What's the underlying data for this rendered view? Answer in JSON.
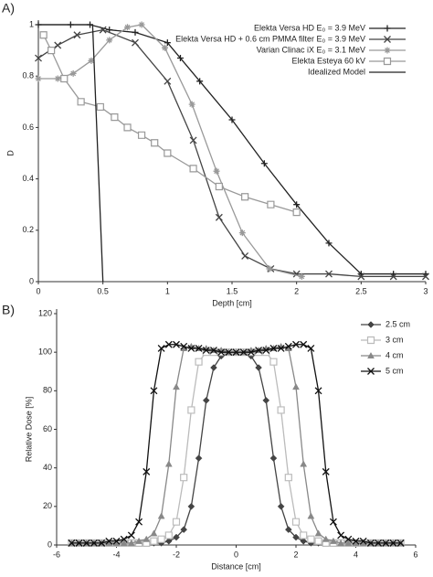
{
  "chart_data": [
    {
      "type": "line",
      "panel_label": "A)",
      "xlabel": "Depth [cm]",
      "ylabel": "D",
      "xlim": [
        0,
        3
      ],
      "ylim": [
        0,
        1
      ],
      "xticks": [
        0,
        0.5,
        1,
        1.5,
        2,
        2.5,
        3
      ],
      "yticks": [
        0,
        0.2,
        0.4,
        0.6,
        0.8,
        1
      ],
      "legend": "upper right",
      "series": [
        {
          "name": "Elekta Versa HD E₀ = 3.9 MeV",
          "color": "#222222",
          "marker": "plus",
          "x": [
            0,
            0.25,
            0.4,
            0.55,
            0.75,
            1.0,
            1.1,
            1.25,
            1.5,
            1.75,
            2.0,
            2.25,
            2.5,
            2.75,
            3.0
          ],
          "values": [
            1,
            1,
            1,
            0.98,
            0.97,
            0.93,
            0.87,
            0.78,
            0.63,
            0.46,
            0.3,
            0.15,
            0.03,
            0.03,
            0.03
          ]
        },
        {
          "name": "Elekta Versa HD + 0.6 cm PMMA filter E₀ = 3.9 MeV",
          "color": "#444444",
          "marker": "cross",
          "x": [
            0,
            0.15,
            0.3,
            0.5,
            0.75,
            1.0,
            1.2,
            1.4,
            1.6,
            1.8,
            2.0,
            2.25,
            2.5,
            2.75,
            3.0
          ],
          "values": [
            0.87,
            0.92,
            0.96,
            0.98,
            0.93,
            0.78,
            0.55,
            0.25,
            0.1,
            0.05,
            0.03,
            0.03,
            0.02,
            0.02,
            0.02
          ]
        },
        {
          "name": "Varian Clinac iX E₀ = 3.1 MeV",
          "color": "#999999",
          "marker": "asterisk",
          "x": [
            0,
            0.15,
            0.27,
            0.41,
            0.55,
            0.69,
            0.8,
            0.98,
            1.19,
            1.38,
            1.58,
            1.79,
            2.04
          ],
          "values": [
            0.79,
            0.79,
            0.81,
            0.86,
            0.94,
            0.99,
            1.0,
            0.91,
            0.69,
            0.43,
            0.19,
            0.05,
            0.02
          ]
        },
        {
          "name": "Elekta Esteya 60 kV",
          "color": "#999999",
          "marker": "square",
          "x": [
            0.04,
            0.1,
            0.2,
            0.33,
            0.48,
            0.59,
            0.69,
            0.8,
            0.9,
            1.0,
            1.2,
            1.4,
            1.6,
            1.8,
            2.0
          ],
          "values": [
            0.96,
            0.9,
            0.79,
            0.7,
            0.68,
            0.64,
            0.6,
            0.57,
            0.54,
            0.5,
            0.44,
            0.37,
            0.33,
            0.3,
            0.27
          ]
        },
        {
          "name": "Idealized Model",
          "color": "#222222",
          "marker": "none",
          "x": [
            0,
            0.42,
            0.5
          ],
          "values": [
            1,
            1,
            0
          ]
        }
      ]
    },
    {
      "type": "line",
      "panel_label": "B)",
      "xlabel": "Distance [cm]",
      "ylabel": "Relative Dose [%]",
      "xlim": [
        -6,
        6
      ],
      "ylim": [
        0,
        120
      ],
      "xticks": [
        -6,
        -4,
        -2,
        0,
        2,
        4,
        6
      ],
      "yticks": [
        0,
        20,
        40,
        60,
        80,
        100,
        120
      ],
      "legend": "right",
      "x": [
        -5.5,
        -5.25,
        -5,
        -4.75,
        -4.5,
        -4.25,
        -4,
        -3.75,
        -3.5,
        -3.25,
        -3,
        -2.75,
        -2.5,
        -2.25,
        -2,
        -1.75,
        -1.5,
        -1.25,
        -1,
        -0.75,
        -0.5,
        -0.25,
        0,
        0.25,
        0.5,
        0.75,
        1,
        1.25,
        1.5,
        1.75,
        2,
        2.25,
        2.5,
        2.75,
        3,
        3.25,
        3.5,
        3.75,
        4,
        4.25,
        4.5,
        4.75,
        5,
        5.25,
        5.5
      ],
      "series": [
        {
          "name": "2.5 cm",
          "color": "#444444",
          "marker": "diamond",
          "values": [
            1,
            1,
            1,
            1,
            1,
            1,
            1,
            1,
            1,
            1,
            1,
            1,
            1,
            2,
            4,
            8,
            20,
            45,
            75,
            92,
            98,
            100,
            100,
            100,
            98,
            92,
            75,
            45,
            20,
            8,
            4,
            2,
            1,
            1,
            1,
            1,
            1,
            1,
            1,
            1,
            1,
            1,
            1,
            1,
            1
          ]
        },
        {
          "name": "3 cm",
          "color": "#bbbbbb",
          "marker": "square",
          "values": [
            1,
            1,
            1,
            1,
            1,
            1,
            1,
            1,
            1,
            1,
            1,
            2,
            3,
            5,
            12,
            35,
            70,
            95,
            100,
            100,
            100,
            100,
            100,
            100,
            100,
            100,
            100,
            95,
            70,
            35,
            12,
            5,
            3,
            2,
            1,
            1,
            1,
            1,
            1,
            1,
            1,
            1,
            1,
            1,
            1
          ]
        },
        {
          "name": "4 cm",
          "color": "#888888",
          "marker": "triangle",
          "values": [
            1,
            1,
            1,
            1,
            1,
            1,
            1,
            1,
            1,
            2,
            3,
            6,
            15,
            42,
            82,
            102,
            103,
            102,
            102,
            101,
            101,
            100,
            100,
            100,
            101,
            101,
            102,
            102,
            103,
            102,
            82,
            42,
            15,
            6,
            3,
            2,
            1,
            1,
            1,
            1,
            1,
            1,
            1,
            1,
            1
          ]
        },
        {
          "name": "5 cm",
          "color": "#111111",
          "marker": "cross",
          "values": [
            1,
            1,
            1,
            1,
            1,
            2,
            2,
            3,
            5,
            12,
            38,
            80,
            102,
            104,
            104,
            103,
            102,
            102,
            101,
            101,
            100,
            100,
            100,
            100,
            100,
            101,
            101,
            102,
            102,
            103,
            104,
            104,
            102,
            80,
            38,
            12,
            5,
            3,
            2,
            2,
            1,
            1,
            1,
            1,
            1
          ]
        }
      ]
    }
  ]
}
